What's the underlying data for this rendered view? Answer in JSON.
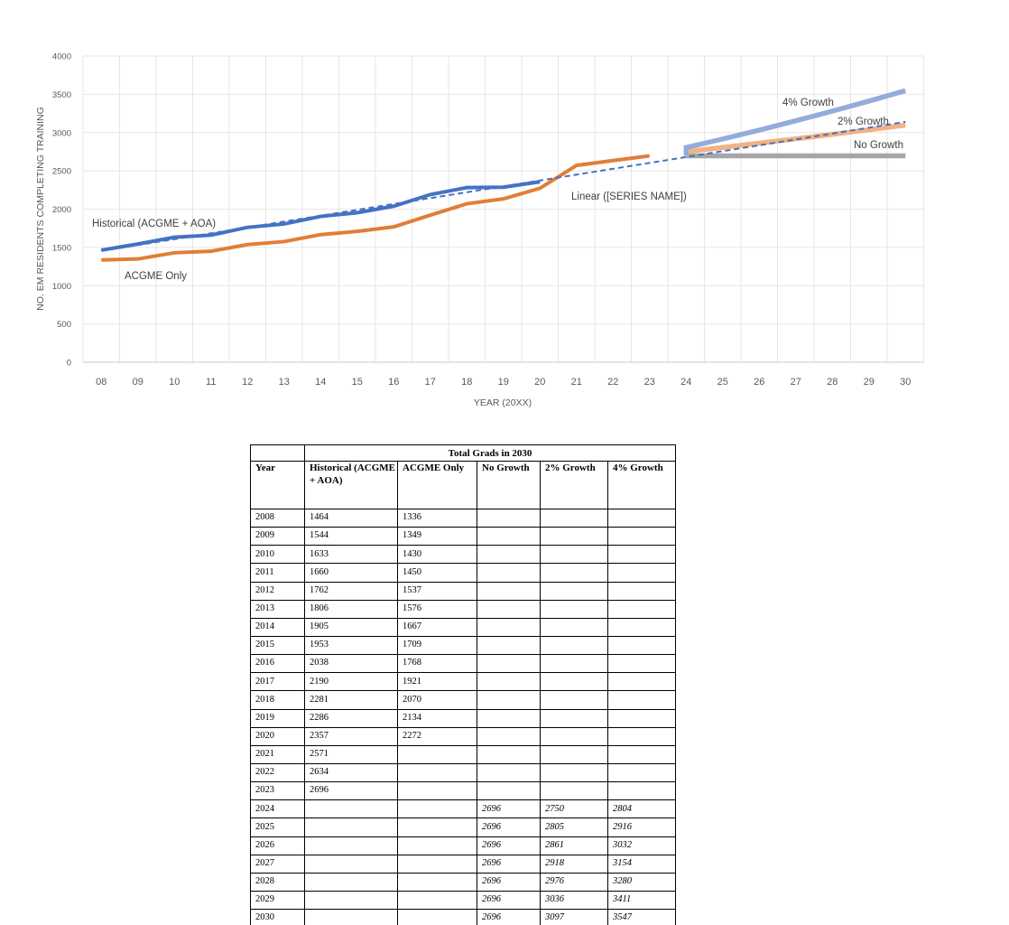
{
  "chart_data": {
    "type": "line",
    "title": "",
    "xlabel": "YEAR (20XX)",
    "ylabel": "NO. EM RESIDENTS COMPLETING TRAINING",
    "ylim": [
      0,
      4000
    ],
    "y_ticks": [
      0,
      500,
      1000,
      1500,
      2000,
      2500,
      3000,
      3500,
      4000
    ],
    "x_ticks": [
      "08",
      "09",
      "10",
      "11",
      "12",
      "13",
      "14",
      "15",
      "16",
      "17",
      "18",
      "19",
      "20",
      "21",
      "22",
      "23",
      "24",
      "25",
      "26",
      "27",
      "28",
      "29",
      "30"
    ],
    "grid": "on",
    "legend": "inline-labels",
    "lines": [
      {
        "id": "historical",
        "label": "Historical (ACGME + AOA)",
        "color": "#4472C4",
        "width": 4,
        "dash": "",
        "years": [
          2008,
          2009,
          2010,
          2011,
          2012,
          2013,
          2014,
          2015,
          2016,
          2017,
          2018,
          2019,
          2020
        ],
        "values": [
          1464,
          1544,
          1633,
          1660,
          1762,
          1806,
          1905,
          1953,
          2038,
          2190,
          2281,
          2286,
          2357
        ]
      },
      {
        "id": "acgme",
        "label": "ACGME Only",
        "color": "#E07E38",
        "width": 4,
        "dash": "",
        "years": [
          2008,
          2009,
          2010,
          2011,
          2012,
          2013,
          2014,
          2015,
          2016,
          2017,
          2018,
          2019,
          2020,
          2021,
          2022,
          2023
        ],
        "values": [
          1336,
          1349,
          1430,
          1450,
          1537,
          1576,
          1667,
          1709,
          1768,
          1921,
          2070,
          2134,
          2272,
          2571,
          2634,
          2696
        ]
      },
      {
        "id": "linear-trendline",
        "label": "Linear ([SERIES NAME])",
        "color": "#4472C4",
        "width": 2,
        "dash": "6 4",
        "years": [
          2008,
          2030
        ],
        "values": [
          1454,
          3140
        ]
      },
      {
        "id": "no-growth",
        "label": "No Growth",
        "color": "#A6A6A6",
        "width": 5.5,
        "dash": "",
        "years": [
          2024,
          2030
        ],
        "values": [
          2696,
          2696
        ]
      },
      {
        "id": "growth-2pct",
        "label": "2% Growth",
        "color": "#F4B183",
        "width": 5.5,
        "dash": "",
        "years": [
          2024,
          2024,
          2025,
          2026,
          2027,
          2028,
          2029,
          2030
        ],
        "values": [
          2696,
          2750,
          2805,
          2861,
          2918,
          2976,
          3036,
          3097
        ]
      },
      {
        "id": "growth-4pct",
        "label": "4% Growth",
        "color": "#93ACDC",
        "width": 5.5,
        "dash": "",
        "years": [
          2024,
          2024,
          2025,
          2026,
          2027,
          2028,
          2029,
          2030
        ],
        "values": [
          2696,
          2804,
          2916,
          3032,
          3154,
          3280,
          3411,
          3547
        ]
      }
    ]
  },
  "table": {
    "title": "Total Grads in 2030",
    "columns": [
      "Year",
      "Historical (ACGME + AOA)",
      "ACGME Only",
      "No Growth",
      "2% Growth",
      "4% Growth"
    ],
    "rows": [
      {
        "cells": [
          "2008",
          "1464",
          "1336",
          "",
          "",
          ""
        ],
        "projected": false
      },
      {
        "cells": [
          "2009",
          "1544",
          "1349",
          "",
          "",
          ""
        ],
        "projected": false
      },
      {
        "cells": [
          "2010",
          "1633",
          "1430",
          "",
          "",
          ""
        ],
        "projected": false
      },
      {
        "cells": [
          "2011",
          "1660",
          "1450",
          "",
          "",
          ""
        ],
        "projected": false
      },
      {
        "cells": [
          "2012",
          "1762",
          "1537",
          "",
          "",
          ""
        ],
        "projected": false
      },
      {
        "cells": [
          "2013",
          "1806",
          "1576",
          "",
          "",
          ""
        ],
        "projected": false
      },
      {
        "cells": [
          "2014",
          "1905",
          "1667",
          "",
          "",
          ""
        ],
        "projected": false
      },
      {
        "cells": [
          "2015",
          "1953",
          "1709",
          "",
          "",
          ""
        ],
        "projected": false
      },
      {
        "cells": [
          "2016",
          "2038",
          "1768",
          "",
          "",
          ""
        ],
        "projected": false
      },
      {
        "cells": [
          "2017",
          "2190",
          "1921",
          "",
          "",
          ""
        ],
        "projected": false
      },
      {
        "cells": [
          "2018",
          "2281",
          "2070",
          "",
          "",
          ""
        ],
        "projected": false
      },
      {
        "cells": [
          "2019",
          "2286",
          "2134",
          "",
          "",
          ""
        ],
        "projected": false
      },
      {
        "cells": [
          "2020",
          "2357",
          "2272",
          "",
          "",
          ""
        ],
        "projected": false
      },
      {
        "cells": [
          "2021",
          "2571",
          "",
          "",
          "",
          ""
        ],
        "projected": false
      },
      {
        "cells": [
          "2022",
          "2634",
          "",
          "",
          "",
          ""
        ],
        "projected": false
      },
      {
        "cells": [
          "2023",
          "2696",
          "",
          "",
          "",
          ""
        ],
        "projected": false
      },
      {
        "cells": [
          "2024",
          "",
          "",
          "2696",
          "2750",
          "2804"
        ],
        "projected": true
      },
      {
        "cells": [
          "2025",
          "",
          "",
          "2696",
          "2805",
          "2916"
        ],
        "projected": true
      },
      {
        "cells": [
          "2026",
          "",
          "",
          "2696",
          "2861",
          "3032"
        ],
        "projected": true
      },
      {
        "cells": [
          "2027",
          "",
          "",
          "2696",
          "2918",
          "3154"
        ],
        "projected": true
      },
      {
        "cells": [
          "2028",
          "",
          "",
          "2696",
          "2976",
          "3280"
        ],
        "projected": true
      },
      {
        "cells": [
          "2029",
          "",
          "",
          "2696",
          "3036",
          "3411"
        ],
        "projected": true
      },
      {
        "cells": [
          "2030",
          "",
          "",
          "2696",
          "3097",
          "3547"
        ],
        "projected": true
      }
    ]
  }
}
